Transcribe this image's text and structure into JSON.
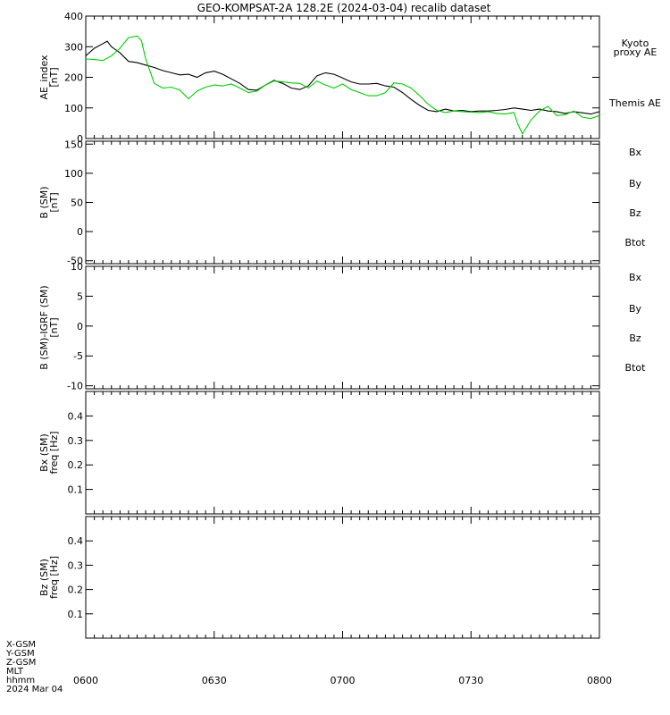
{
  "title": "GEO-KOMPSAT-2A 128.2E (2024-03-04) recalib dataset",
  "footer": {
    "rows": [
      "X-GSM",
      "Y-GSM",
      "Z-GSM",
      "MLT",
      "hhmm",
      "2024 Mar 04"
    ]
  },
  "colors": {
    "black": "#000000",
    "green": "#00cc00",
    "blue": "#0000cc",
    "red": "#cc0000"
  },
  "chart_data": [
    {
      "type": "line",
      "panel": "ae",
      "ylabel": [
        "AE_index",
        "[nT]"
      ],
      "ylim": [
        0,
        400
      ],
      "yticks": [
        0,
        100,
        200,
        300,
        400
      ],
      "xlim": [
        "06:00",
        "08:00"
      ],
      "legend": [
        {
          "text": "Kyoto",
          "color": "#00cc00"
        },
        {
          "text": "proxy AE",
          "color": "#00cc00"
        },
        {
          "text": "Themis AE",
          "color": "#000000"
        }
      ],
      "series": [
        {
          "name": "Themis AE",
          "color": "#000000",
          "x": [
            "06:00",
            "06:02",
            "06:04",
            "06:05",
            "06:06",
            "06:08",
            "06:10",
            "06:12",
            "06:14",
            "06:16",
            "06:18",
            "06:20",
            "06:22",
            "06:24",
            "06:26",
            "06:28",
            "06:30",
            "06:32",
            "06:34",
            "06:36",
            "06:38",
            "06:40",
            "06:42",
            "06:44",
            "06:46",
            "06:48",
            "06:50",
            "06:52",
            "06:54",
            "06:56",
            "06:58",
            "07:00",
            "07:02",
            "07:04",
            "07:06",
            "07:08",
            "07:10",
            "07:12",
            "07:14",
            "07:16",
            "07:18",
            "07:20",
            "07:22",
            "07:24",
            "07:26",
            "07:28",
            "07:30",
            "07:32",
            "07:34",
            "07:36",
            "07:38",
            "07:40",
            "07:42",
            "07:44",
            "07:46",
            "07:48",
            "07:50",
            "07:52",
            "07:54",
            "07:56",
            "07:58",
            "08:00"
          ],
          "values": [
            270,
            295,
            310,
            318,
            300,
            280,
            252,
            248,
            240,
            232,
            222,
            215,
            208,
            210,
            200,
            215,
            220,
            210,
            195,
            180,
            160,
            158,
            175,
            190,
            180,
            165,
            160,
            172,
            205,
            215,
            210,
            198,
            185,
            178,
            178,
            180,
            172,
            168,
            150,
            128,
            108,
            92,
            88,
            96,
            90,
            92,
            88,
            90,
            90,
            92,
            95,
            100,
            96,
            92,
            96,
            90,
            88,
            82,
            88,
            84,
            80,
            88
          ]
        },
        {
          "name": "Kyoto proxy AE",
          "color": "#00cc00",
          "x": [
            "06:00",
            "06:02",
            "06:04",
            "06:06",
            "06:08",
            "06:10",
            "06:12",
            "06:13",
            "06:14",
            "06:16",
            "06:18",
            "06:20",
            "06:22",
            "06:24",
            "06:26",
            "06:28",
            "06:30",
            "06:32",
            "06:34",
            "06:36",
            "06:38",
            "06:40",
            "06:42",
            "06:44",
            "06:46",
            "06:48",
            "06:50",
            "06:52",
            "06:54",
            "06:56",
            "06:58",
            "07:00",
            "07:02",
            "07:04",
            "07:06",
            "07:08",
            "07:10",
            "07:12",
            "07:14",
            "07:16",
            "07:18",
            "07:20",
            "07:22",
            "07:24",
            "07:26",
            "07:28",
            "07:30",
            "07:32",
            "07:34",
            "07:36",
            "07:38",
            "07:40",
            "07:41",
            "07:42",
            "07:44",
            "07:46",
            "07:48",
            "07:50",
            "07:52",
            "07:54",
            "07:56",
            "07:58",
            "08:00"
          ],
          "values": [
            260,
            258,
            255,
            270,
            295,
            330,
            335,
            320,
            260,
            180,
            165,
            168,
            158,
            130,
            155,
            168,
            175,
            172,
            178,
            165,
            150,
            155,
            175,
            188,
            185,
            182,
            180,
            165,
            188,
            175,
            165,
            178,
            160,
            150,
            140,
            140,
            150,
            182,
            178,
            165,
            140,
            112,
            92,
            85,
            90,
            88,
            86,
            85,
            88,
            82,
            80,
            85,
            45,
            15,
            60,
            90,
            105,
            75,
            78,
            90,
            70,
            65,
            75
          ]
        }
      ]
    },
    {
      "type": "line",
      "panel": "b-sm",
      "ylabel": [
        "B (SM)",
        "[nT]"
      ],
      "ylim": [
        -55,
        155
      ],
      "yticks": [
        -50,
        0,
        50,
        100,
        150
      ],
      "xlim": [
        "06:00",
        "08:00"
      ],
      "legend": [
        {
          "text": "Bx",
          "color": "#0000cc"
        },
        {
          "text": "By",
          "color": "#00cc00"
        },
        {
          "text": "Bz",
          "color": "#cc0000"
        },
        {
          "text": "Btot",
          "color": "#000000"
        }
      ],
      "series": []
    },
    {
      "type": "line",
      "panel": "b-igrf",
      "ylabel": [
        "B (SM)-IGRF (SM)",
        "[nT]"
      ],
      "ylim": [
        -10.5,
        10
      ],
      "yticks": [
        -10,
        -5,
        0,
        5,
        10
      ],
      "xlim": [
        "06:00",
        "08:00"
      ],
      "legend": [
        {
          "text": "Bx",
          "color": "#0000cc"
        },
        {
          "text": "By",
          "color": "#00cc00"
        },
        {
          "text": "Bz",
          "color": "#cc0000"
        },
        {
          "text": "Btot",
          "color": "#000000"
        }
      ],
      "series": []
    },
    {
      "type": "heatmap",
      "panel": "bx-spec",
      "ylabel": [
        "Bx (SM)",
        "freq [Hz]"
      ],
      "ylim": [
        0,
        0.5
      ],
      "yticks": [
        0.1,
        0.2,
        0.3,
        0.4
      ],
      "xlim": [
        "06:00",
        "08:00"
      ],
      "series": []
    },
    {
      "type": "heatmap",
      "panel": "bz-spec",
      "ylabel": [
        "Bz (SM)",
        "freq [Hz]"
      ],
      "ylim": [
        0,
        0.5
      ],
      "yticks": [
        0.1,
        0.2,
        0.3,
        0.4
      ],
      "xlim": [
        "06:00",
        "08:00"
      ],
      "xticks": [
        "0600",
        "0630",
        "0700",
        "0730",
        "0800"
      ],
      "series": []
    }
  ]
}
